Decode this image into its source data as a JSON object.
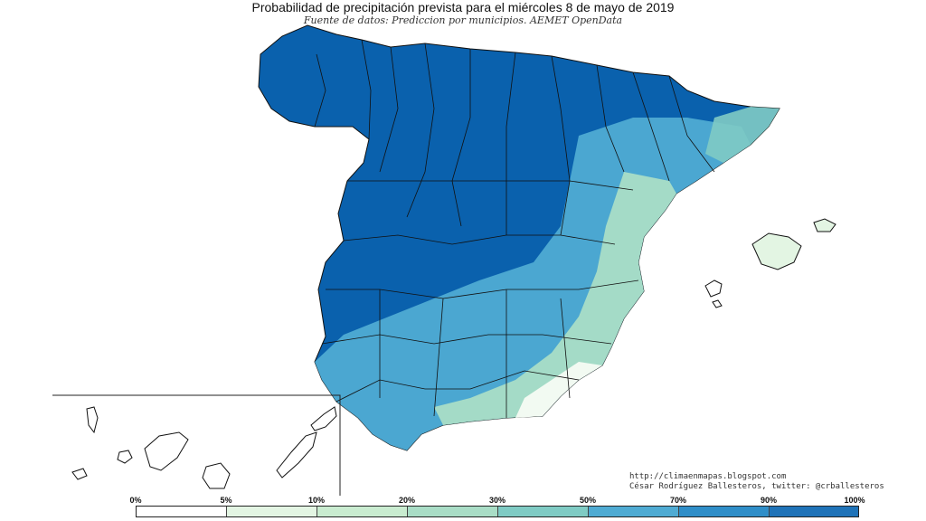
{
  "map": {
    "title": "Probabilidad de precipitación prevista para el miércoles 8 de mayo de 2019",
    "subtitle": "Fuente de datos: Prediccion por municipios. AEMET OpenData",
    "credits": {
      "url": "http://climaenmapas.blogspot.com",
      "author": "César Rodríguez Ballesteros, twitter: @crballesteros"
    }
  },
  "legend": {
    "ticks": [
      "0%",
      "5%",
      "10%",
      "20%",
      "30%",
      "50%",
      "70%",
      "90%",
      "100%"
    ],
    "colors": [
      "#ffffff",
      "#e3f5e3",
      "#c9ecd0",
      "#a9ddc6",
      "#7fcbc4",
      "#4fabd3",
      "#2f8ec8",
      "#1f73b8",
      "#0a61ad"
    ]
  }
}
